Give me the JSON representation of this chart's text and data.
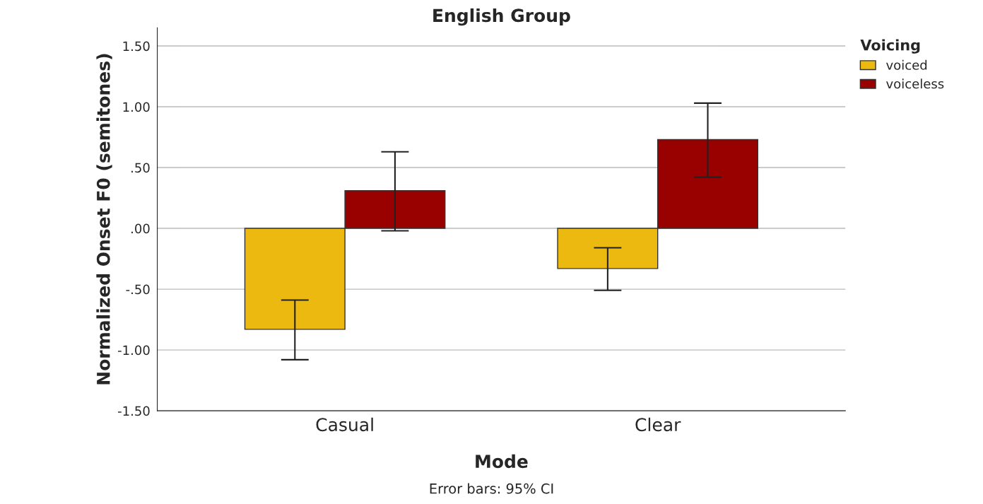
{
  "chart_data": {
    "type": "bar",
    "title": "English Group",
    "xlabel": "Mode",
    "ylabel": "Normalized Onset F0 (semitones)",
    "legend_title": "Voicing",
    "categories": [
      "Casual",
      "Clear"
    ],
    "series": [
      {
        "name": "voiced",
        "color": "#ebb90f",
        "values": [
          -0.83,
          -0.33
        ],
        "errors": [
          [
            -1.08,
            -0.59
          ],
          [
            -0.51,
            -0.16
          ]
        ]
      },
      {
        "name": "voiceless",
        "color": "#990000",
        "values": [
          0.31,
          0.73
        ],
        "errors": [
          [
            -0.02,
            0.63
          ],
          [
            0.42,
            1.03
          ]
        ]
      }
    ],
    "ylim": [
      -1.5,
      1.65
    ],
    "yticks": [
      {
        "value": -1.5,
        "label": "-1.50"
      },
      {
        "value": -1.0,
        "label": "-1.00"
      },
      {
        "value": -0.5,
        "label": "-.50"
      },
      {
        "value": 0,
        "label": ".00"
      },
      {
        "value": 0.5,
        "label": ".50"
      },
      {
        "value": 1.0,
        "label": "1.00"
      },
      {
        "value": 1.5,
        "label": "1.50"
      }
    ],
    "grid": "y",
    "legend": "top right",
    "annotations": [
      "Error bars: 95% CI"
    ]
  }
}
